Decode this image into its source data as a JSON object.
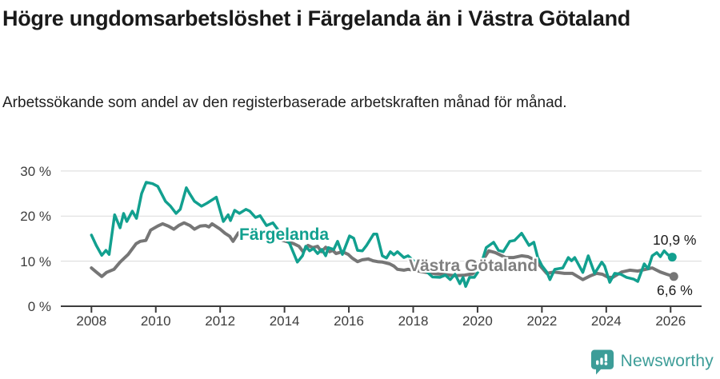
{
  "header": {
    "title": "Högre ungdomsarbetslöshet i Färgelanda än i Västra Götaland",
    "subtitle": "Arbetssökande som andel av den registerbaserade arbetskraften månad för månad."
  },
  "footer": {
    "brand_name": "Newsworthy"
  },
  "colors": {
    "accent_teal": "#12a08f",
    "series_gray": "#767676",
    "grid": "#dadada",
    "axis": "#3c3c3c",
    "text": "#1a1a1a",
    "brand_teal": "#3d9d98"
  },
  "chart_data": {
    "type": "line",
    "title": "Högre ungdomsarbetslöshet i Färgelanda än i Västra Götaland",
    "subtitle": "Arbetssökande som andel av den registerbaserade arbetskraften månad för månad.",
    "xlabel": "",
    "ylabel": "",
    "grid": true,
    "legend_position": "inline-labels",
    "x_axis": {
      "tick_years": [
        2008,
        2010,
        2012,
        2014,
        2016,
        2018,
        2020,
        2022,
        2024,
        2026
      ],
      "range": [
        2007.05,
        2027.0
      ]
    },
    "y_axis": {
      "tick_values": [
        0,
        10,
        20,
        30
      ],
      "tick_labels": [
        "0 %",
        "10 %",
        "20 %",
        "30 %"
      ],
      "unit": "%",
      "ylim": [
        0,
        30
      ]
    },
    "series": [
      {
        "name": "Färgelanda",
        "color": "#12a08f",
        "end_label": "10,9 %",
        "end_value": 10.9,
        "points": [
          [
            2008.0,
            15.8
          ],
          [
            2008.15,
            13.5
          ],
          [
            2008.32,
            11.3
          ],
          [
            2008.45,
            12.4
          ],
          [
            2008.55,
            11.5
          ],
          [
            2008.72,
            20.3
          ],
          [
            2008.89,
            17.4
          ],
          [
            2009.0,
            20.6
          ],
          [
            2009.1,
            18.8
          ],
          [
            2009.27,
            21.1
          ],
          [
            2009.4,
            19.5
          ],
          [
            2009.56,
            25.0
          ],
          [
            2009.7,
            27.5
          ],
          [
            2009.9,
            27.2
          ],
          [
            2010.06,
            26.6
          ],
          [
            2010.3,
            23.3
          ],
          [
            2010.46,
            22.2
          ],
          [
            2010.63,
            20.6
          ],
          [
            2010.76,
            21.5
          ],
          [
            2010.95,
            26.3
          ],
          [
            2011.05,
            25.0
          ],
          [
            2011.2,
            23.3
          ],
          [
            2011.42,
            22.2
          ],
          [
            2011.6,
            22.9
          ],
          [
            2011.88,
            24.2
          ],
          [
            2012.1,
            18.8
          ],
          [
            2012.25,
            20.3
          ],
          [
            2012.32,
            19.0
          ],
          [
            2012.45,
            21.3
          ],
          [
            2012.6,
            20.6
          ],
          [
            2012.8,
            21.5
          ],
          [
            2012.92,
            21.1
          ],
          [
            2013.1,
            19.7
          ],
          [
            2013.24,
            20.1
          ],
          [
            2013.44,
            17.9
          ],
          [
            2013.64,
            18.5
          ],
          [
            2013.9,
            16.0
          ],
          [
            2014.16,
            13.9
          ],
          [
            2014.4,
            9.8
          ],
          [
            2014.56,
            11.2
          ],
          [
            2014.66,
            13.3
          ],
          [
            2014.78,
            12.3
          ],
          [
            2014.9,
            12.8
          ],
          [
            2015.03,
            11.7
          ],
          [
            2015.16,
            12.6
          ],
          [
            2015.28,
            11.2
          ],
          [
            2015.36,
            13.0
          ],
          [
            2015.53,
            12.6
          ],
          [
            2015.65,
            14.4
          ],
          [
            2015.8,
            11.5
          ],
          [
            2016.02,
            15.6
          ],
          [
            2016.15,
            15.1
          ],
          [
            2016.27,
            12.4
          ],
          [
            2016.42,
            12.3
          ],
          [
            2016.55,
            13.5
          ],
          [
            2016.77,
            16.0
          ],
          [
            2016.87,
            16.0
          ],
          [
            2017.04,
            11.2
          ],
          [
            2017.17,
            10.7
          ],
          [
            2017.29,
            12.1
          ],
          [
            2017.4,
            11.4
          ],
          [
            2017.51,
            12.1
          ],
          [
            2017.71,
            10.8
          ],
          [
            2017.84,
            11.2
          ],
          [
            2018.1,
            9.5
          ],
          [
            2018.4,
            7.8
          ],
          [
            2018.6,
            6.5
          ],
          [
            2018.83,
            6.4
          ],
          [
            2019.0,
            6.9
          ],
          [
            2019.15,
            5.9
          ],
          [
            2019.3,
            7.1
          ],
          [
            2019.45,
            5.0
          ],
          [
            2019.55,
            6.4
          ],
          [
            2019.63,
            4.4
          ],
          [
            2019.75,
            6.4
          ],
          [
            2019.9,
            6.4
          ],
          [
            2020.05,
            8.0
          ],
          [
            2020.27,
            13.0
          ],
          [
            2020.5,
            14.2
          ],
          [
            2020.65,
            12.4
          ],
          [
            2020.8,
            12.1
          ],
          [
            2021.0,
            14.4
          ],
          [
            2021.15,
            14.6
          ],
          [
            2021.37,
            16.2
          ],
          [
            2021.6,
            13.5
          ],
          [
            2021.75,
            14.2
          ],
          [
            2021.87,
            10.8
          ],
          [
            2022.0,
            9.0
          ],
          [
            2022.15,
            7.6
          ],
          [
            2022.25,
            5.9
          ],
          [
            2022.4,
            8.2
          ],
          [
            2022.65,
            8.5
          ],
          [
            2022.82,
            10.8
          ],
          [
            2022.92,
            10.1
          ],
          [
            2023.02,
            10.8
          ],
          [
            2023.15,
            9.1
          ],
          [
            2023.27,
            7.5
          ],
          [
            2023.44,
            11.2
          ],
          [
            2023.64,
            7.3
          ],
          [
            2023.86,
            9.8
          ],
          [
            2023.95,
            8.9
          ],
          [
            2024.11,
            5.3
          ],
          [
            2024.26,
            7.3
          ],
          [
            2024.45,
            7.1
          ],
          [
            2024.63,
            6.4
          ],
          [
            2024.86,
            6.0
          ],
          [
            2024.98,
            5.5
          ],
          [
            2025.18,
            9.4
          ],
          [
            2025.3,
            8.3
          ],
          [
            2025.43,
            11.2
          ],
          [
            2025.57,
            11.9
          ],
          [
            2025.68,
            11.0
          ],
          [
            2025.8,
            12.3
          ],
          [
            2025.92,
            11.4
          ],
          [
            2026.05,
            10.9
          ]
        ]
      },
      {
        "name": "Västra Götaland",
        "color": "#767676",
        "end_label": "6,6 %",
        "end_value": 6.6,
        "points": [
          [
            2008.0,
            8.5
          ],
          [
            2008.15,
            7.6
          ],
          [
            2008.32,
            6.6
          ],
          [
            2008.47,
            7.5
          ],
          [
            2008.7,
            8.2
          ],
          [
            2008.89,
            9.8
          ],
          [
            2009.14,
            11.5
          ],
          [
            2009.39,
            13.9
          ],
          [
            2009.52,
            14.4
          ],
          [
            2009.69,
            14.6
          ],
          [
            2009.84,
            16.9
          ],
          [
            2010.06,
            17.8
          ],
          [
            2010.21,
            18.3
          ],
          [
            2010.39,
            17.8
          ],
          [
            2010.56,
            17.1
          ],
          [
            2010.71,
            17.9
          ],
          [
            2010.88,
            18.5
          ],
          [
            2011.06,
            17.9
          ],
          [
            2011.2,
            17.1
          ],
          [
            2011.38,
            17.8
          ],
          [
            2011.55,
            17.9
          ],
          [
            2011.65,
            17.6
          ],
          [
            2011.75,
            18.3
          ],
          [
            2012.0,
            17.1
          ],
          [
            2012.15,
            16.2
          ],
          [
            2012.3,
            15.5
          ],
          [
            2012.4,
            14.4
          ],
          [
            2012.57,
            16.3
          ],
          [
            2012.8,
            16.4
          ],
          [
            2013.1,
            16.4
          ],
          [
            2013.4,
            16.2
          ],
          [
            2013.7,
            15.5
          ],
          [
            2013.95,
            14.6
          ],
          [
            2014.28,
            13.9
          ],
          [
            2014.45,
            13.3
          ],
          [
            2014.58,
            12.1
          ],
          [
            2014.73,
            13.5
          ],
          [
            2014.88,
            13.0
          ],
          [
            2015.03,
            13.3
          ],
          [
            2015.15,
            12.1
          ],
          [
            2015.28,
            13.1
          ],
          [
            2015.4,
            12.1
          ],
          [
            2015.5,
            12.4
          ],
          [
            2015.6,
            11.7
          ],
          [
            2015.8,
            12.1
          ],
          [
            2015.98,
            11.5
          ],
          [
            2016.1,
            10.7
          ],
          [
            2016.27,
            9.9
          ],
          [
            2016.42,
            10.3
          ],
          [
            2016.6,
            10.5
          ],
          [
            2016.75,
            10.1
          ],
          [
            2016.89,
            9.9
          ],
          [
            2017.05,
            9.8
          ],
          [
            2017.27,
            9.4
          ],
          [
            2017.4,
            8.9
          ],
          [
            2017.51,
            8.2
          ],
          [
            2017.71,
            8.0
          ],
          [
            2017.84,
            8.2
          ],
          [
            2018.1,
            7.9
          ],
          [
            2018.4,
            7.5
          ],
          [
            2018.7,
            7.2
          ],
          [
            2019.0,
            7.0
          ],
          [
            2019.3,
            6.8
          ],
          [
            2019.6,
            6.9
          ],
          [
            2019.85,
            7.2
          ],
          [
            2020.1,
            9.5
          ],
          [
            2020.35,
            12.3
          ],
          [
            2020.55,
            11.9
          ],
          [
            2020.87,
            10.8
          ],
          [
            2021.12,
            10.8
          ],
          [
            2021.37,
            11.2
          ],
          [
            2021.57,
            11.0
          ],
          [
            2021.8,
            10.2
          ],
          [
            2022.0,
            8.5
          ],
          [
            2022.15,
            7.3
          ],
          [
            2022.37,
            7.6
          ],
          [
            2022.7,
            7.3
          ],
          [
            2022.95,
            7.3
          ],
          [
            2023.27,
            5.9
          ],
          [
            2023.52,
            6.8
          ],
          [
            2023.7,
            7.3
          ],
          [
            2023.88,
            7.1
          ],
          [
            2024.06,
            6.4
          ],
          [
            2024.2,
            6.4
          ],
          [
            2024.48,
            7.6
          ],
          [
            2024.73,
            8.0
          ],
          [
            2024.98,
            7.8
          ],
          [
            2025.23,
            8.2
          ],
          [
            2025.43,
            8.5
          ],
          [
            2025.68,
            7.6
          ],
          [
            2025.88,
            7.1
          ],
          [
            2026.1,
            6.6
          ]
        ]
      }
    ]
  }
}
